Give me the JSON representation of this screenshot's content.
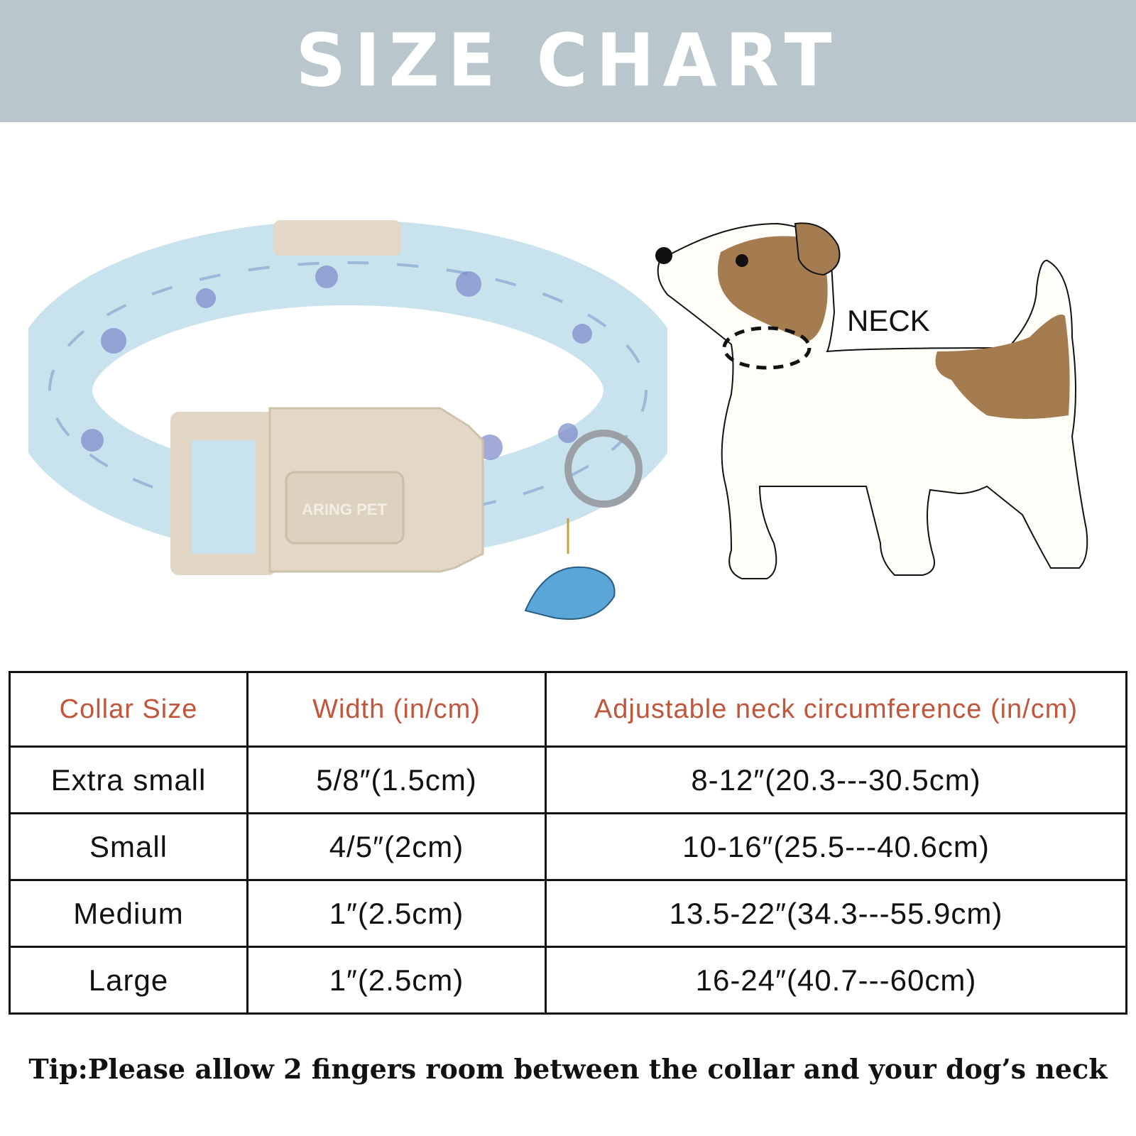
{
  "header": {
    "title": "SIZE CHART",
    "background_color": "#b9c6cc"
  },
  "product_image": {
    "brand_logo_text": "ARING PET",
    "icon": "dinosaur-print-dog-collar"
  },
  "dog_diagram": {
    "label": "NECK",
    "icon": "dog-neck-measurement"
  },
  "size_table": {
    "header_color": "#c0563b",
    "columns": [
      "Collar Size",
      "Width (in/cm)",
      "Adjustable neck circumference (in/cm)"
    ],
    "rows": [
      [
        "Extra small",
        "5/8″(1.5cm)",
        "8-12″(20.3---30.5cm)"
      ],
      [
        "Small",
        "4/5″(2cm)",
        "10-16″(25.5---40.6cm)"
      ],
      [
        "Medium",
        "1″(2.5cm)",
        "13.5-22″(34.3---55.9cm)"
      ],
      [
        "Large",
        "1″(2.5cm)",
        "16-24″(40.7---60cm)"
      ]
    ]
  },
  "tip": "Tip:Please allow 2 fingers room between the collar and your dog’s neck"
}
